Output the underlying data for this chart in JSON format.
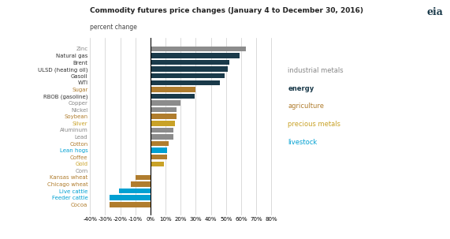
{
  "title": "Commodity futures price changes (January 4 to December 30, 2016)",
  "subtitle": "percent change",
  "categories": [
    "Zinc",
    "Natural gas",
    "Brent",
    "ULSD (heating oil)",
    "Gasoil",
    "WTI",
    "Sugar",
    "RBOB (gasoline)",
    "Copper",
    "Nickel",
    "Soybean",
    "Silver",
    "Aluminum",
    "Lead",
    "Cotton",
    "Lean hogs",
    "Coffee",
    "Gold",
    "Corn",
    "Kansas wheat",
    "Chicago wheat",
    "Live cattle",
    "Feeder cattle",
    "Cocoa"
  ],
  "values": [
    63,
    59,
    52,
    51,
    49,
    46,
    30,
    29,
    20,
    17,
    17,
    16,
    15,
    15,
    12,
    11,
    11,
    9,
    0,
    -10,
    -13,
    -21,
    -27,
    -27
  ],
  "bar_colors": [
    "#8c8c8c",
    "#1a3a4a",
    "#1a3a4a",
    "#1a3a4a",
    "#1a3a4a",
    "#1a3a4a",
    "#b07d2e",
    "#1a3a4a",
    "#8c8c8c",
    "#8c8c8c",
    "#b07d2e",
    "#c9a227",
    "#8c8c8c",
    "#8c8c8c",
    "#b07d2e",
    "#00a0d2",
    "#b07d2e",
    "#c9a227",
    "#b07d2e",
    "#b07d2e",
    "#b07d2e",
    "#00a0d2",
    "#00a0d2",
    "#b07d2e"
  ],
  "label_colors": [
    "#888888",
    "#333333",
    "#333333",
    "#333333",
    "#333333",
    "#333333",
    "#b07d2e",
    "#333333",
    "#888888",
    "#888888",
    "#b07d2e",
    "#c9a227",
    "#888888",
    "#888888",
    "#b07d2e",
    "#00a0d2",
    "#b07d2e",
    "#c9a227",
    "#888888",
    "#b07d2e",
    "#b07d2e",
    "#00a0d2",
    "#00a0d2",
    "#b07d2e"
  ],
  "xlim": [
    -40,
    85
  ],
  "xticks": [
    -40,
    -30,
    -20,
    -10,
    0,
    10,
    20,
    30,
    40,
    50,
    60,
    70,
    80
  ],
  "xtick_labels": [
    "-40%",
    "-30%",
    "-20%",
    "-10%",
    "0%",
    "10%",
    "20%",
    "30%",
    "40%",
    "50%",
    "60%",
    "70%",
    "80%"
  ],
  "legend_items": [
    {
      "label": "industrial metals",
      "color": "#888888",
      "bold": false
    },
    {
      "label": "energy",
      "color": "#1a3a4a",
      "bold": true
    },
    {
      "label": "agriculture",
      "color": "#b07d2e",
      "bold": false
    },
    {
      "label": "precious metals",
      "color": "#c9a227",
      "bold": false
    },
    {
      "label": "livestock",
      "color": "#00a0d2",
      "bold": false
    }
  ],
  "bg_color": "#ffffff",
  "bar_height": 0.75
}
